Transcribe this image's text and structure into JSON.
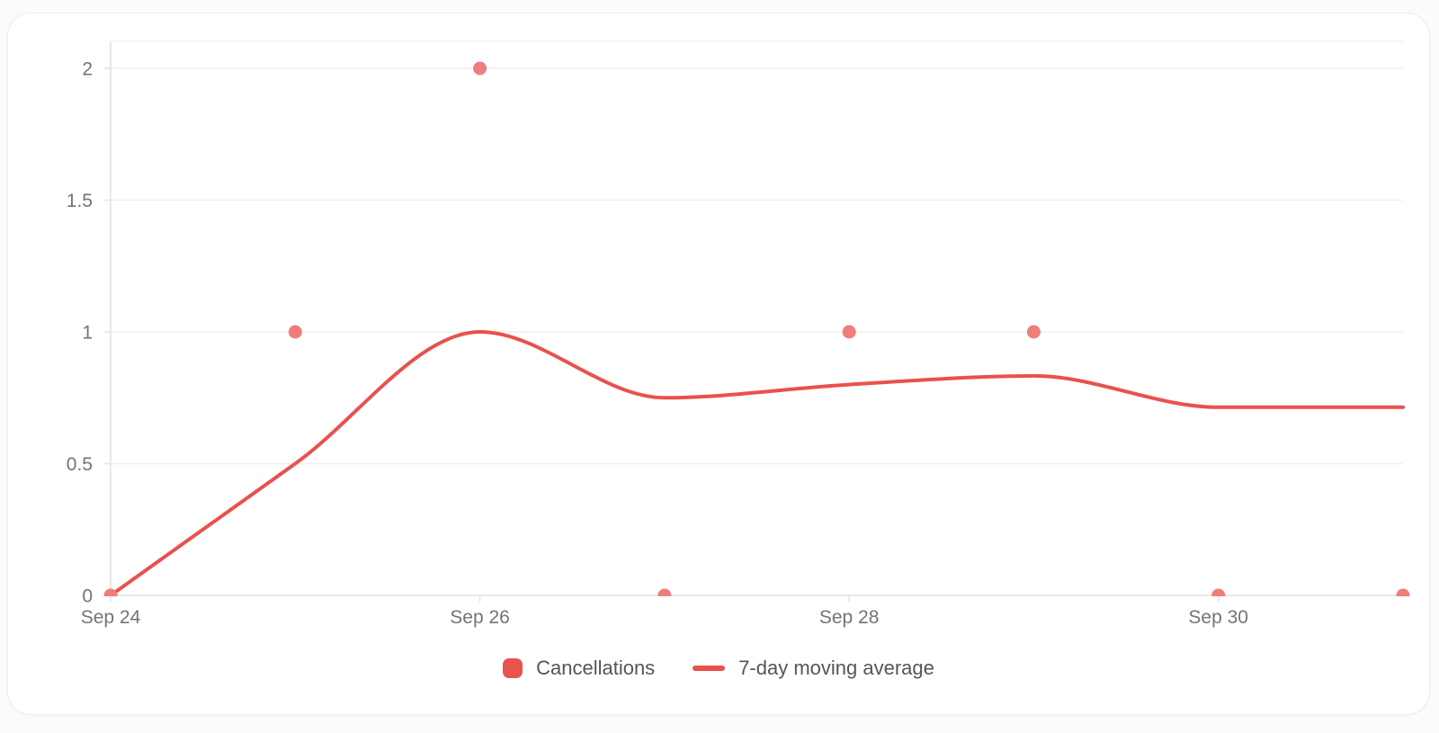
{
  "page": {
    "background": "#fbfbfb"
  },
  "card": {
    "background": "#ffffff",
    "border_color": "#ececec"
  },
  "chart_data": {
    "type": "scatter",
    "title": "",
    "xlabel": "",
    "ylabel": "",
    "x": [
      "Sep 24",
      "Sep 25",
      "Sep 26",
      "Sep 27",
      "Sep 28",
      "Sep 29",
      "Sep 30",
      "Oct 1"
    ],
    "series": [
      {
        "name": "Cancellations",
        "type": "scatter",
        "color": "#ef7e7b",
        "legend_color": "#e75450",
        "values": [
          0,
          1,
          2,
          0,
          1,
          1,
          0,
          0
        ]
      },
      {
        "name": "7-day moving average",
        "type": "line",
        "color": "#e9514d",
        "legend_color": "#e9514d",
        "smooth": true,
        "values": [
          0,
          0.5,
          1,
          0.75,
          0.8,
          0.833,
          0.714,
          0.714
        ]
      }
    ],
    "x_tick_labels": [
      "Sep 24",
      "Sep 26",
      "Sep 28",
      "Sep 30"
    ],
    "x_tick_indices": [
      0,
      2,
      4,
      6
    ],
    "y_tick_labels": [
      "0",
      "0.5",
      "1",
      "1.5",
      "2"
    ],
    "y_tick_values": [
      0,
      0.5,
      1,
      1.5,
      2
    ],
    "ylim": [
      0,
      2.1
    ],
    "grid": "horizontal",
    "legend_position": "bottom",
    "colors": {
      "grid": "#f0f0f0",
      "axis": "#e2e2e2",
      "tick_label": "#737379",
      "legend_text": "#54555b"
    }
  }
}
